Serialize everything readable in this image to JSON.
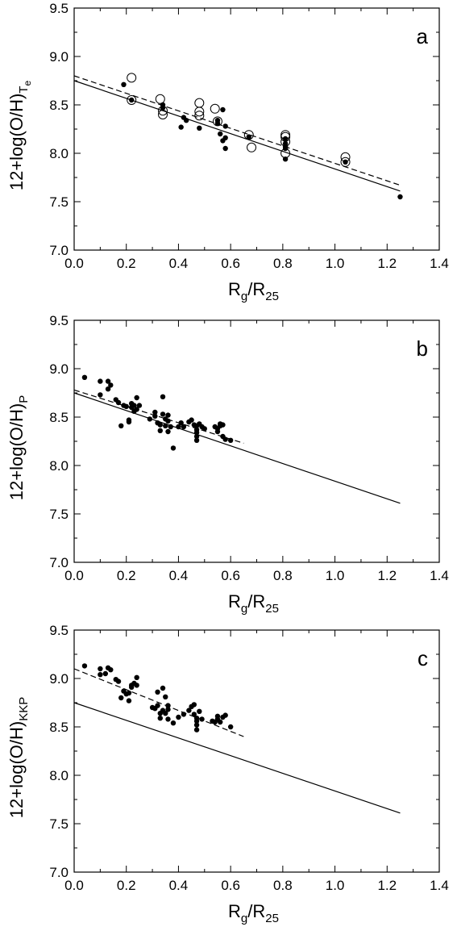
{
  "chart_data": [
    {
      "type": "scatter",
      "panel_label": "a",
      "xlabel": "R_g/R_25",
      "ylabel": "12+log(O/H)_Te",
      "ylabel_base": "12+log(O/H)",
      "ylabel_sub": "T",
      "ylabel_subsub": "e",
      "xlim": [
        0.0,
        1.4
      ],
      "ylim": [
        7.0,
        9.5
      ],
      "xticks": [
        "0.0",
        "0.2",
        "0.4",
        "0.6",
        "0.8",
        "1.0",
        "1.2",
        "1.4"
      ],
      "yticks": [
        "7.0",
        "7.5",
        "8.0",
        "8.5",
        "9.0",
        "9.5"
      ],
      "grid": false,
      "series": [
        {
          "marker": "filled-circle",
          "points": [
            [
              0.19,
              8.71
            ],
            [
              0.22,
              8.55
            ],
            [
              0.34,
              8.5
            ],
            [
              0.34,
              8.47
            ],
            [
              0.41,
              8.27
            ],
            [
              0.42,
              8.37
            ],
            [
              0.43,
              8.34
            ],
            [
              0.48,
              8.26
            ],
            [
              0.55,
              8.34
            ],
            [
              0.55,
              8.31
            ],
            [
              0.56,
              8.2
            ],
            [
              0.57,
              8.45
            ],
            [
              0.57,
              8.13
            ],
            [
              0.58,
              8.16
            ],
            [
              0.58,
              8.05
            ],
            [
              0.58,
              8.28
            ],
            [
              0.67,
              8.17
            ],
            [
              0.81,
              8.15
            ],
            [
              0.81,
              8.1
            ],
            [
              0.81,
              8.07
            ],
            [
              0.81,
              8.05
            ],
            [
              0.81,
              7.94
            ],
            [
              1.04,
              7.91
            ],
            [
              1.25,
              7.55
            ]
          ]
        },
        {
          "marker": "open-circle",
          "points": [
            [
              0.22,
              8.78
            ],
            [
              0.22,
              8.55
            ],
            [
              0.33,
              8.56
            ],
            [
              0.34,
              8.44
            ],
            [
              0.34,
              8.4
            ],
            [
              0.48,
              8.52
            ],
            [
              0.48,
              8.43
            ],
            [
              0.48,
              8.39
            ],
            [
              0.54,
              8.46
            ],
            [
              0.55,
              8.33
            ],
            [
              0.67,
              8.19
            ],
            [
              0.68,
              8.06
            ],
            [
              0.81,
              8.19
            ],
            [
              0.81,
              8.17
            ],
            [
              0.81,
              8.12
            ],
            [
              0.81,
              8.0
            ],
            [
              1.04,
              7.96
            ],
            [
              1.04,
              7.91
            ]
          ]
        }
      ],
      "lines": [
        {
          "style": "solid",
          "x": [
            0.0,
            1.25
          ],
          "y": [
            8.75,
            7.61
          ]
        },
        {
          "style": "dashed",
          "x": [
            0.0,
            1.25
          ],
          "y": [
            8.8,
            7.67
          ]
        }
      ]
    },
    {
      "type": "scatter",
      "panel_label": "b",
      "xlabel": "R_g/R_25",
      "ylabel": "12+log(O/H)_P",
      "ylabel_base": "12+log(O/H)",
      "ylabel_sub": "P",
      "ylabel_subsub": "",
      "xlim": [
        0.0,
        1.4
      ],
      "ylim": [
        7.0,
        9.5
      ],
      "xticks": [
        "0.0",
        "0.2",
        "0.4",
        "0.6",
        "0.8",
        "1.0",
        "1.2",
        "1.4"
      ],
      "yticks": [
        "7.0",
        "7.5",
        "8.0",
        "8.5",
        "9.0",
        "9.5"
      ],
      "grid": false,
      "series": [
        {
          "marker": "filled-circle",
          "points": [
            [
              0.04,
              8.91
            ],
            [
              0.1,
              8.87
            ],
            [
              0.1,
              8.73
            ],
            [
              0.13,
              8.87
            ],
            [
              0.13,
              8.79
            ],
            [
              0.14,
              8.83
            ],
            [
              0.16,
              8.68
            ],
            [
              0.17,
              8.65
            ],
            [
              0.18,
              8.41
            ],
            [
              0.19,
              8.62
            ],
            [
              0.2,
              8.61
            ],
            [
              0.21,
              8.47
            ],
            [
              0.21,
              8.45
            ],
            [
              0.22,
              8.6
            ],
            [
              0.22,
              8.64
            ],
            [
              0.23,
              8.56
            ],
            [
              0.23,
              8.62
            ],
            [
              0.24,
              8.58
            ],
            [
              0.24,
              8.7
            ],
            [
              0.25,
              8.62
            ],
            [
              0.29,
              8.48
            ],
            [
              0.31,
              8.55
            ],
            [
              0.31,
              8.51
            ],
            [
              0.32,
              8.44
            ],
            [
              0.33,
              8.42
            ],
            [
              0.33,
              8.36
            ],
            [
              0.34,
              8.71
            ],
            [
              0.34,
              8.53
            ],
            [
              0.35,
              8.48
            ],
            [
              0.35,
              8.41
            ],
            [
              0.36,
              8.52
            ],
            [
              0.36,
              8.46
            ],
            [
              0.36,
              8.35
            ],
            [
              0.37,
              8.4
            ],
            [
              0.38,
              8.18
            ],
            [
              0.4,
              8.4
            ],
            [
              0.41,
              8.44
            ],
            [
              0.42,
              8.4
            ],
            [
              0.44,
              8.45
            ],
            [
              0.45,
              8.47
            ],
            [
              0.46,
              8.42
            ],
            [
              0.47,
              8.41
            ],
            [
              0.47,
              8.37
            ],
            [
              0.47,
              8.34
            ],
            [
              0.47,
              8.3
            ],
            [
              0.47,
              8.26
            ],
            [
              0.48,
              8.43
            ],
            [
              0.49,
              8.4
            ],
            [
              0.5,
              8.38
            ],
            [
              0.54,
              8.4
            ],
            [
              0.55,
              8.38
            ],
            [
              0.55,
              8.35
            ],
            [
              0.56,
              8.41
            ],
            [
              0.56,
              8.43
            ],
            [
              0.57,
              8.42
            ],
            [
              0.57,
              8.3
            ],
            [
              0.58,
              8.27
            ],
            [
              0.6,
              8.26
            ]
          ]
        }
      ],
      "lines": [
        {
          "style": "solid",
          "x": [
            0.0,
            1.25
          ],
          "y": [
            8.75,
            7.61
          ]
        },
        {
          "style": "dashed",
          "x": [
            0.0,
            0.65
          ],
          "y": [
            8.78,
            8.23
          ]
        }
      ]
    },
    {
      "type": "scatter",
      "panel_label": "c",
      "xlabel": "R_g/R_25",
      "ylabel": "12+log(O/H)_KKP",
      "ylabel_base": "12+log(O/H)",
      "ylabel_sub": "KKP",
      "ylabel_subsub": "",
      "xlim": [
        0.0,
        1.4
      ],
      "ylim": [
        7.0,
        9.5
      ],
      "xticks": [
        "0.0",
        "0.2",
        "0.4",
        "0.6",
        "0.8",
        "1.0",
        "1.2",
        "1.4"
      ],
      "yticks": [
        "7.0",
        "7.5",
        "8.0",
        "8.5",
        "9.0",
        "9.5"
      ],
      "grid": false,
      "series": [
        {
          "marker": "filled-circle",
          "points": [
            [
              0.04,
              9.13
            ],
            [
              0.1,
              9.1
            ],
            [
              0.1,
              9.04
            ],
            [
              0.12,
              9.05
            ],
            [
              0.13,
              9.11
            ],
            [
              0.14,
              9.09
            ],
            [
              0.16,
              8.99
            ],
            [
              0.17,
              8.97
            ],
            [
              0.18,
              8.8
            ],
            [
              0.19,
              8.87
            ],
            [
              0.2,
              8.84
            ],
            [
              0.21,
              8.77
            ],
            [
              0.21,
              8.85
            ],
            [
              0.22,
              8.93
            ],
            [
              0.22,
              8.91
            ],
            [
              0.23,
              8.95
            ],
            [
              0.24,
              9.01
            ],
            [
              0.24,
              8.93
            ],
            [
              0.3,
              8.7
            ],
            [
              0.31,
              8.69
            ],
            [
              0.32,
              8.86
            ],
            [
              0.32,
              8.72
            ],
            [
              0.33,
              8.64
            ],
            [
              0.33,
              8.59
            ],
            [
              0.34,
              8.9
            ],
            [
              0.34,
              8.67
            ],
            [
              0.35,
              8.64
            ],
            [
              0.35,
              8.81
            ],
            [
              0.36,
              8.72
            ],
            [
              0.36,
              8.68
            ],
            [
              0.36,
              8.58
            ],
            [
              0.38,
              8.54
            ],
            [
              0.4,
              8.6
            ],
            [
              0.42,
              8.63
            ],
            [
              0.44,
              8.67
            ],
            [
              0.45,
              8.71
            ],
            [
              0.46,
              8.63
            ],
            [
              0.46,
              8.73
            ],
            [
              0.47,
              8.59
            ],
            [
              0.47,
              8.56
            ],
            [
              0.47,
              8.52
            ],
            [
              0.47,
              8.47
            ],
            [
              0.48,
              8.66
            ],
            [
              0.49,
              8.58
            ],
            [
              0.53,
              8.56
            ],
            [
              0.54,
              8.55
            ],
            [
              0.55,
              8.58
            ],
            [
              0.55,
              8.61
            ],
            [
              0.56,
              8.55
            ],
            [
              0.57,
              8.6
            ],
            [
              0.58,
              8.62
            ],
            [
              0.6,
              8.5
            ]
          ]
        }
      ],
      "lines": [
        {
          "style": "solid",
          "x": [
            0.0,
            1.25
          ],
          "y": [
            8.75,
            7.61
          ]
        },
        {
          "style": "dashed",
          "x": [
            0.0,
            0.65
          ],
          "y": [
            9.1,
            8.4
          ]
        }
      ]
    }
  ]
}
